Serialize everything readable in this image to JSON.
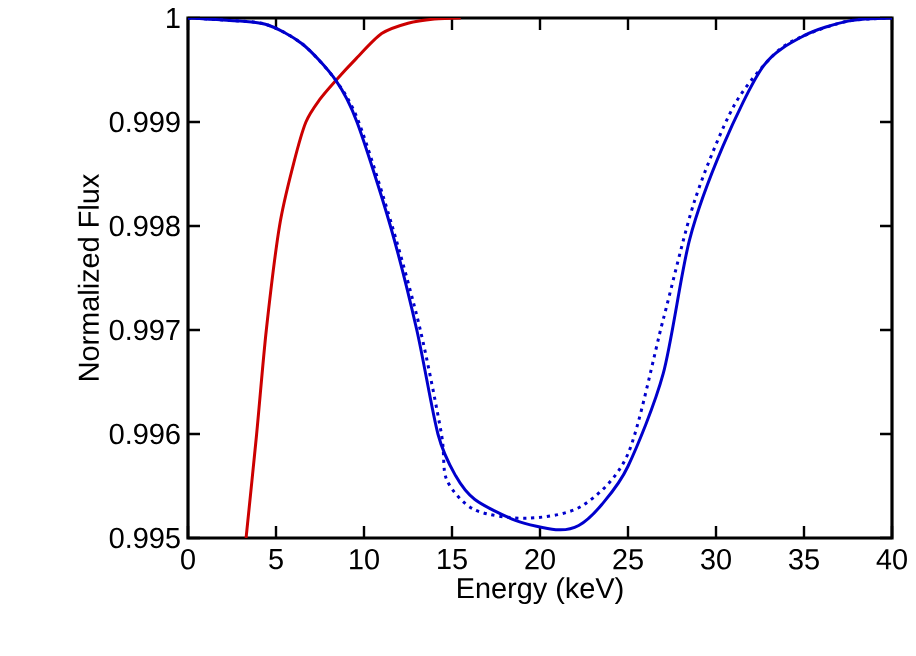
{
  "chart_data": {
    "type": "line",
    "xlabel": "Energy (keV)",
    "ylabel": "Normalized Flux",
    "xlim": [
      0,
      40
    ],
    "ylim": [
      0.995,
      1
    ],
    "xticks": [
      0,
      5,
      10,
      15,
      20,
      25,
      30,
      35,
      40
    ],
    "yticks": [
      0.995,
      0.996,
      0.997,
      0.998,
      0.999,
      1
    ],
    "marker": "none",
    "series": [
      {
        "color": "#cc0000",
        "line_style": "solid",
        "x": [
          3.3,
          3.9,
          4.45,
          5.2,
          6.0,
          6.7,
          7.5,
          8.4,
          9.5,
          11,
          12.5,
          14,
          15.5
        ],
        "values": [
          0.995,
          0.996,
          0.997,
          0.998,
          0.9986,
          0.999,
          0.99922,
          0.9994,
          0.9996,
          0.99985,
          0.99995,
          0.99999,
          1
        ]
      },
      {
        "color": "#0000cc",
        "line_style": "solid",
        "x": [
          0,
          2,
          4.4,
          6.5,
          8.4,
          9.6,
          11.5,
          13.0,
          14.2,
          15.2,
          16.3,
          18.6,
          20.9,
          22.2,
          23.5,
          25.0,
          27.0,
          28.5,
          30.4,
          32.7,
          35,
          37.5,
          40
        ],
        "values": [
          1,
          0.99998,
          0.99994,
          0.99975,
          0.9994,
          0.999,
          0.998,
          0.997,
          0.996,
          0.9956,
          0.99537,
          0.99517,
          0.99508,
          0.99512,
          0.99532,
          0.99569,
          0.99658,
          0.99787,
          0.99877,
          0.99954,
          0.99983,
          0.99997,
          1
        ]
      },
      {
        "color": "#0000cc",
        "line_style": "dotted",
        "x": [
          0,
          2,
          4.4,
          6.5,
          8.4,
          9.7,
          11.6,
          13.2,
          14.4,
          14.7,
          16.3,
          19.3,
          22.4,
          25,
          27,
          28.8,
          31,
          33.3,
          35,
          37.5,
          40
        ],
        "values": [
          1,
          0.99998,
          0.99994,
          0.99975,
          0.9994,
          0.999,
          0.998,
          0.997,
          0.996,
          0.99556,
          0.99527,
          0.99519,
          0.99531,
          0.99581,
          0.9971,
          0.99825,
          0.99915,
          0.99965,
          0.99983,
          0.99997,
          1
        ]
      }
    ]
  }
}
